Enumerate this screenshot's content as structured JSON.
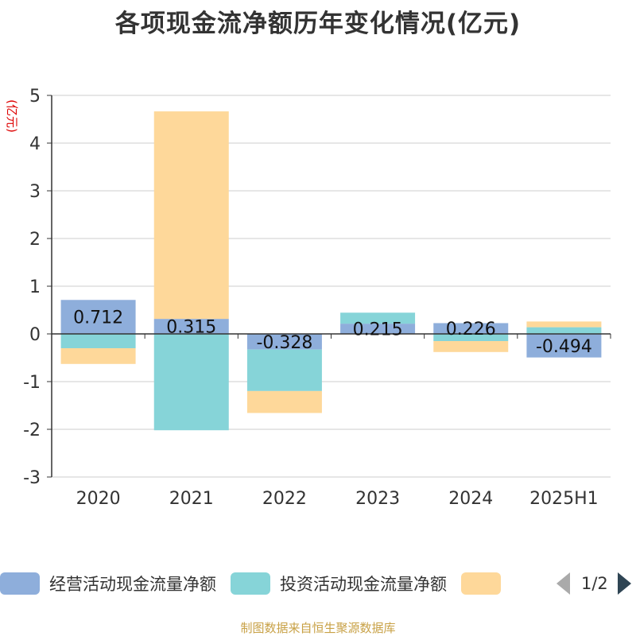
{
  "chart_data": {
    "type": "bar",
    "stacked": true,
    "title": "各项现金流净额历年变化情况(亿元)",
    "ylabel": "(亿元)",
    "categories": [
      "2020",
      "2021",
      "2022",
      "2023",
      "2024",
      "2025H1"
    ],
    "ylim": [
      -3,
      5
    ],
    "yticks": [
      5,
      4,
      3,
      2,
      1,
      0,
      -1,
      -2,
      -3
    ],
    "grid": true,
    "legend_position": "bottom",
    "series": [
      {
        "name": "经营活动现金流量净额",
        "color": "#8eaedb",
        "values": [
          0.712,
          0.315,
          -0.328,
          0.215,
          0.226,
          -0.494
        ]
      },
      {
        "name": "投资活动现金流量净额",
        "color": "#86d4d8",
        "values": [
          -0.3,
          -2.02,
          -0.87,
          0.23,
          -0.15,
          0.14
        ]
      },
      {
        "name": "",
        "color": "#fed89a",
        "values": [
          -0.33,
          4.35,
          -0.46,
          0.0,
          -0.23,
          0.12
        ]
      }
    ],
    "data_labels": [
      "0.712",
      "0.315",
      "-0.328",
      "0.215",
      "0.226",
      "-0.494"
    ]
  },
  "legend": {
    "items": [
      {
        "label": "经营活动现金流量净额",
        "color": "#8eaedb"
      },
      {
        "label": "投资活动现金流量净额",
        "color": "#86d4d8"
      },
      {
        "label": "",
        "color": "#fed89a"
      }
    ],
    "page": "1/2"
  },
  "source": "制图数据来自恒生聚源数据库"
}
